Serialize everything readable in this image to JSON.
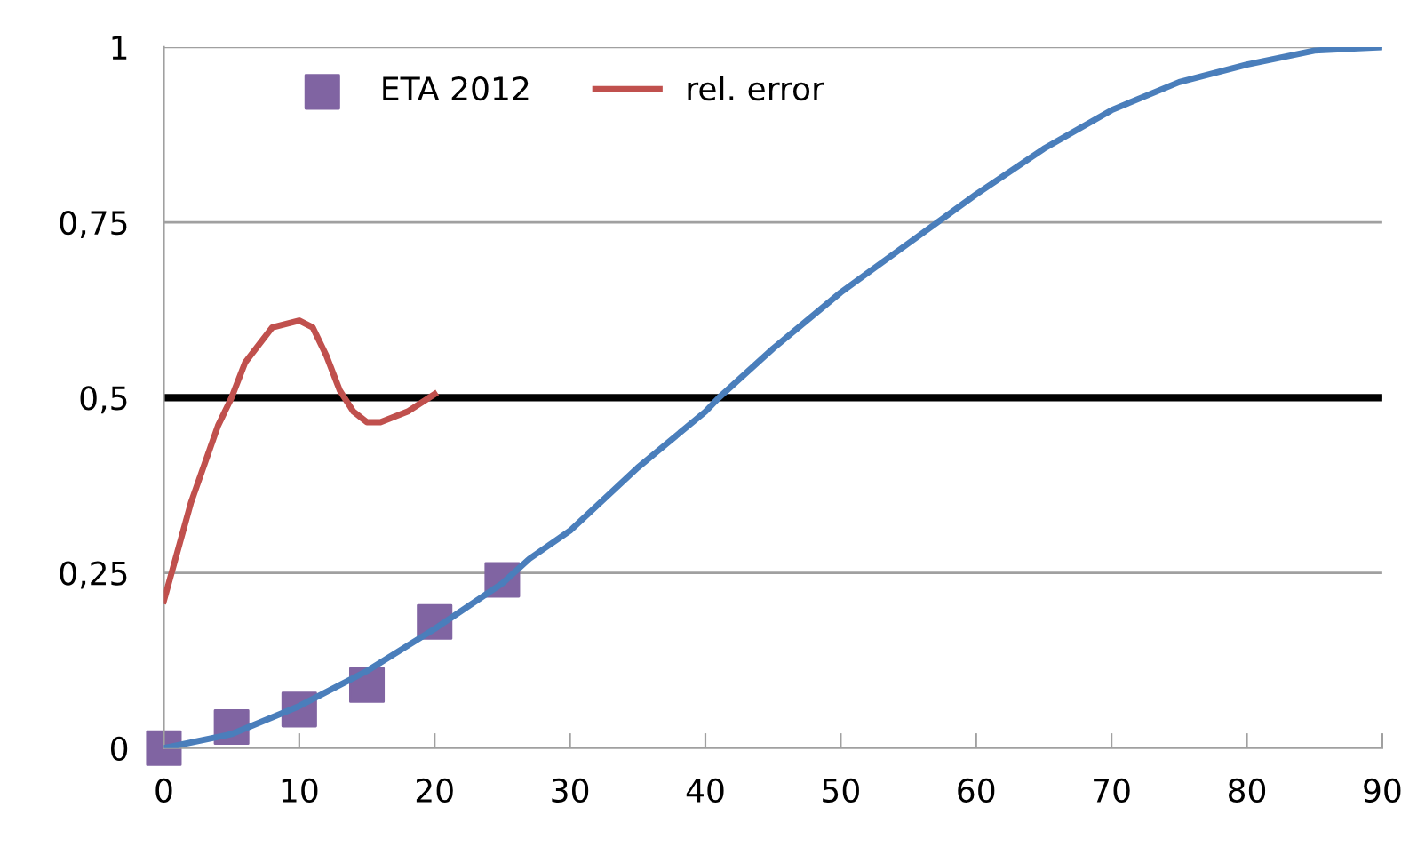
{
  "chart_data": {
    "type": "line",
    "series": [
      {
        "color": "#4a7ebb",
        "x": [
          0,
          5,
          10,
          15,
          20,
          25,
          27,
          30,
          35,
          40,
          41,
          45,
          50,
          55,
          60,
          65,
          70,
          75,
          80,
          85,
          90
        ],
        "values": [
          0,
          0.02,
          0.06,
          0.11,
          0.17,
          0.235,
          0.27,
          0.31,
          0.4,
          0.48,
          0.5,
          0.57,
          0.65,
          0.72,
          0.79,
          0.855,
          0.91,
          0.95,
          0.975,
          0.995,
          1
        ]
      },
      {
        "name": "ETA 2012",
        "color": "#8064a2",
        "type": "scatter",
        "marker": "square",
        "x": [
          0,
          5,
          10,
          15,
          20,
          25
        ],
        "values": [
          0,
          0.03,
          0.055,
          0.09,
          0.18,
          0.24
        ]
      },
      {
        "name": "rel. error",
        "color": "#c0504d",
        "x": [
          0,
          2,
          4,
          5,
          6,
          8,
          10,
          11,
          12,
          13,
          14,
          15,
          16,
          18,
          20
        ],
        "values": [
          0.21,
          0.35,
          0.46,
          0.5,
          0.55,
          0.6,
          0.61,
          0.6,
          0.56,
          0.51,
          0.48,
          0.465,
          0.465,
          0.48,
          0.505
        ]
      }
    ],
    "xlim": [
      0,
      90
    ],
    "xticks": [
      0,
      10,
      20,
      30,
      40,
      50,
      60,
      70,
      80,
      90
    ],
    "ylim": [
      0,
      1
    ],
    "yticks": [
      {
        "value": 0,
        "label": "0"
      },
      {
        "value": 0.25,
        "label": "0,25"
      },
      {
        "value": 0.5,
        "label": "0,5"
      },
      {
        "value": 0.75,
        "label": "0,75"
      },
      {
        "value": 1,
        "label": "1"
      }
    ],
    "ref_lines": [
      {
        "axis": "y",
        "value": 0.5,
        "color": "#000000"
      }
    ],
    "grid": "y",
    "legend": "top left"
  }
}
